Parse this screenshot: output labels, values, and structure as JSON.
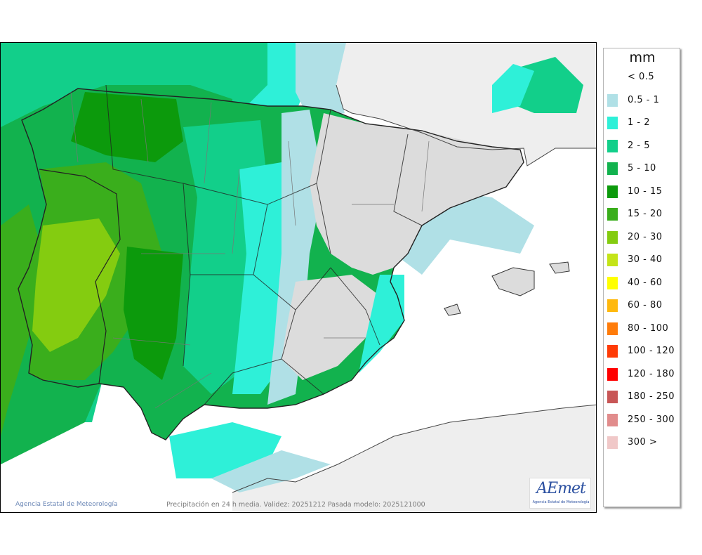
{
  "map": {
    "footer_credit": "Agencia Estatal de Meteorología",
    "footer_validity": "Precipitación en 24 h media. Validez: 20251212 Pasada modelo: 2025121000",
    "logo_text": "AEmet",
    "logo_subtitle": "Agencia Estatal de Meteorología",
    "colors": {
      "sea": "#ffffff",
      "foreign_land": "#eeeeee",
      "dry_land": "#dcdcdc"
    }
  },
  "legend": {
    "unit": "mm",
    "items": [
      {
        "label": "< 0.5",
        "color": ""
      },
      {
        "label": "0.5 - 1",
        "color": "#b0e0e6"
      },
      {
        "label": "1 - 2",
        "color": "#2ef0d8"
      },
      {
        "label": "2 - 5",
        "color": "#12cf8a"
      },
      {
        "label": "5 - 10",
        "color": "#12b24e"
      },
      {
        "label": "10 - 15",
        "color": "#0c9a0c"
      },
      {
        "label": "15 - 20",
        "color": "#3aae1c"
      },
      {
        "label": "20 - 30",
        "color": "#84cc10"
      },
      {
        "label": "30 - 40",
        "color": "#c4e418"
      },
      {
        "label": "40 - 60",
        "color": "#ffff00"
      },
      {
        "label": "60 - 80",
        "color": "#ffb90e"
      },
      {
        "label": "80 - 100",
        "color": "#ff7c0a"
      },
      {
        "label": "100 - 120",
        "color": "#ff3b06"
      },
      {
        "label": "120 - 180",
        "color": "#ff0000"
      },
      {
        "label": "180 - 250",
        "color": "#c85656"
      },
      {
        "label": "250 - 300",
        "color": "#e18c8c"
      },
      {
        "label": "300 >",
        "color": "#f0c8c8"
      }
    ]
  }
}
